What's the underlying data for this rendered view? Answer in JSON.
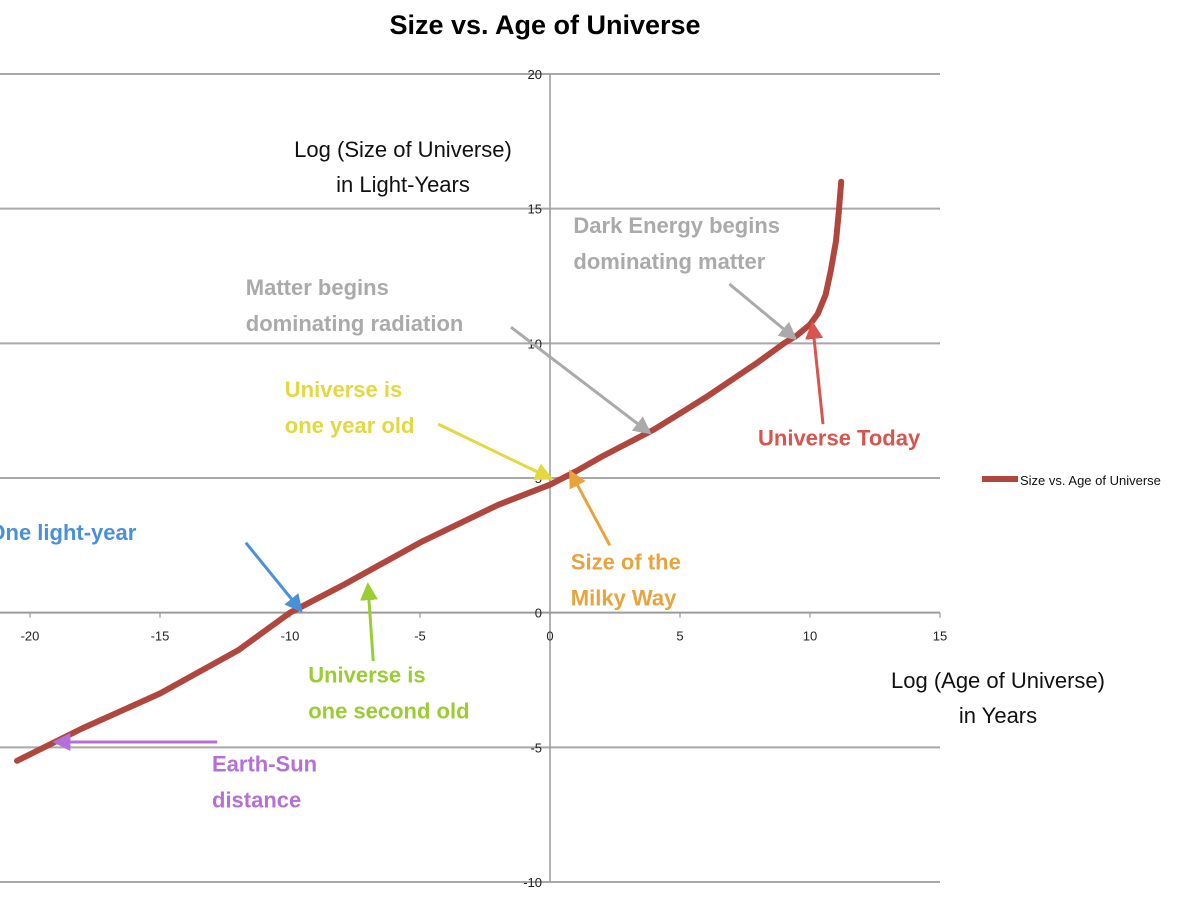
{
  "chart_data": {
    "type": "line",
    "title": "Size vs. Age of Universe",
    "xlabel": [
      "Log (Age of Universe)",
      "in Years"
    ],
    "ylabel": [
      "Log (Size of Universe)",
      "in Light-Years"
    ],
    "xlim": [
      -20,
      15
    ],
    "ylim": [
      -10,
      20
    ],
    "x_ticks": [
      -20,
      -15,
      -10,
      -5,
      0,
      5,
      10,
      15
    ],
    "y_ticks": [
      -10,
      -5,
      0,
      5,
      10,
      15,
      20
    ],
    "grid": "horizontal",
    "legend_position": "right",
    "series": [
      {
        "name": "Size vs. Age of Universe",
        "color": "#b0473f",
        "x": [
          -20.5,
          -18,
          -15,
          -12,
          -10,
          -8,
          -5,
          -2,
          0,
          1,
          2,
          3,
          4,
          5,
          6,
          7,
          8,
          9,
          9.5,
          10,
          10.3,
          10.6,
          10.8,
          11.0,
          11.1,
          11.15,
          11.2
        ],
        "y": [
          -5.5,
          -4.3,
          -3.0,
          -1.4,
          0,
          1.0,
          2.6,
          4.0,
          4.75,
          5.25,
          5.8,
          6.3,
          6.8,
          7.4,
          8.0,
          8.65,
          9.3,
          10.0,
          10.3,
          10.7,
          11.1,
          11.8,
          12.7,
          13.8,
          14.8,
          15.4,
          16.0
        ]
      }
    ],
    "annotations": [
      {
        "id": "one-light-year",
        "lines": [
          "One light-year"
        ],
        "color": "#4a90d9",
        "point": [
          -9.6,
          0.1
        ],
        "text_pos": [
          -21.6,
          2.7
        ],
        "arrow_from": [
          -11.7,
          2.6
        ]
      },
      {
        "id": "one-second-old",
        "lines": [
          "Universe is",
          "one second old"
        ],
        "color": "#9acd32",
        "point": [
          -7.0,
          1.0
        ],
        "text_pos": [
          -9.3,
          -2.6
        ],
        "arrow_from": [
          -6.8,
          -1.8
        ]
      },
      {
        "id": "earth-sun",
        "lines": [
          "Earth-Sun",
          "distance"
        ],
        "color": "#b470d8",
        "point": [
          -19.0,
          -4.8
        ],
        "text_pos": [
          -13.0,
          -5.9
        ],
        "arrow_from": [
          -12.8,
          -4.8
        ]
      },
      {
        "id": "one-year-old",
        "lines": [
          "Universe is",
          "one year old"
        ],
        "color": "#e2d840",
        "point": [
          0.0,
          5.0
        ],
        "text_pos": [
          -10.2,
          8.0
        ],
        "arrow_from": [
          -4.3,
          7.0
        ]
      },
      {
        "id": "milky-way",
        "lines": [
          "Size of the",
          "Milky Way"
        ],
        "color": "#e8a33d",
        "point": [
          0.8,
          5.2
        ],
        "text_pos": [
          0.8,
          1.6
        ],
        "arrow_from": [
          2.3,
          2.5
        ]
      },
      {
        "id": "matter-radiation",
        "lines": [
          "Matter begins",
          "dominating radiation"
        ],
        "color": "#aaaaaa",
        "point": [
          3.8,
          6.7
        ],
        "text_pos": [
          -11.7,
          11.8
        ],
        "arrow_from": [
          -1.5,
          10.6
        ]
      },
      {
        "id": "dark-energy",
        "lines": [
          "Dark Energy begins",
          "dominating matter"
        ],
        "color": "#aaaaaa",
        "point": [
          9.4,
          10.2
        ],
        "text_pos": [
          0.9,
          14.1
        ],
        "arrow_from": [
          6.9,
          12.2
        ]
      },
      {
        "id": "universe-today",
        "lines": [
          "Universe Today"
        ],
        "color": "#d9534f",
        "point": [
          10.1,
          10.7
        ],
        "text_pos": [
          8.0,
          6.2
        ],
        "arrow_from": [
          10.5,
          7.0
        ]
      }
    ]
  }
}
